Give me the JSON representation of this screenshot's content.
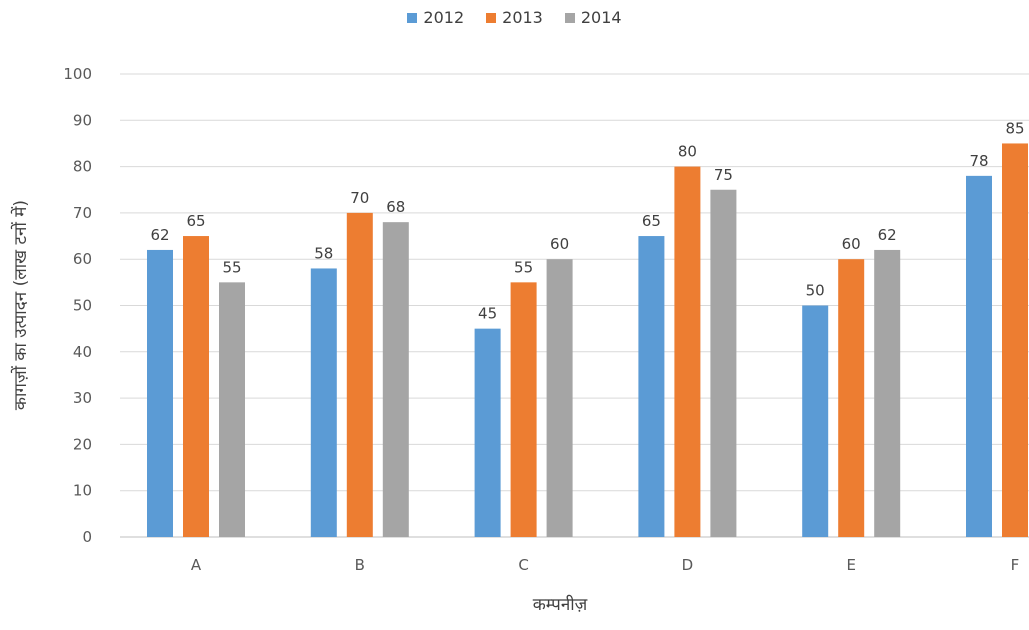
{
  "chart_data": {
    "type": "bar",
    "title": "",
    "xlabel": "कम्पनीज़",
    "ylabel": "कागज़ों का उत्पादन (लाख टनों में)",
    "categories": [
      "A",
      "B",
      "C",
      "D",
      "E",
      "F"
    ],
    "series": [
      {
        "name": "2012",
        "color": "#5b9bd5",
        "values": [
          62,
          58,
          45,
          65,
          50,
          78
        ]
      },
      {
        "name": "2013",
        "color": "#ed7d31",
        "values": [
          65,
          70,
          55,
          80,
          60,
          85
        ]
      },
      {
        "name": "2014",
        "color": "#a5a5a5",
        "values": [
          55,
          68,
          60,
          75,
          62,
          null
        ]
      }
    ],
    "ylim": [
      0,
      100
    ],
    "yticks": [
      0,
      10,
      20,
      30,
      40,
      50,
      60,
      70,
      80,
      90,
      100
    ],
    "grid": true,
    "legend_position": "top-center"
  }
}
